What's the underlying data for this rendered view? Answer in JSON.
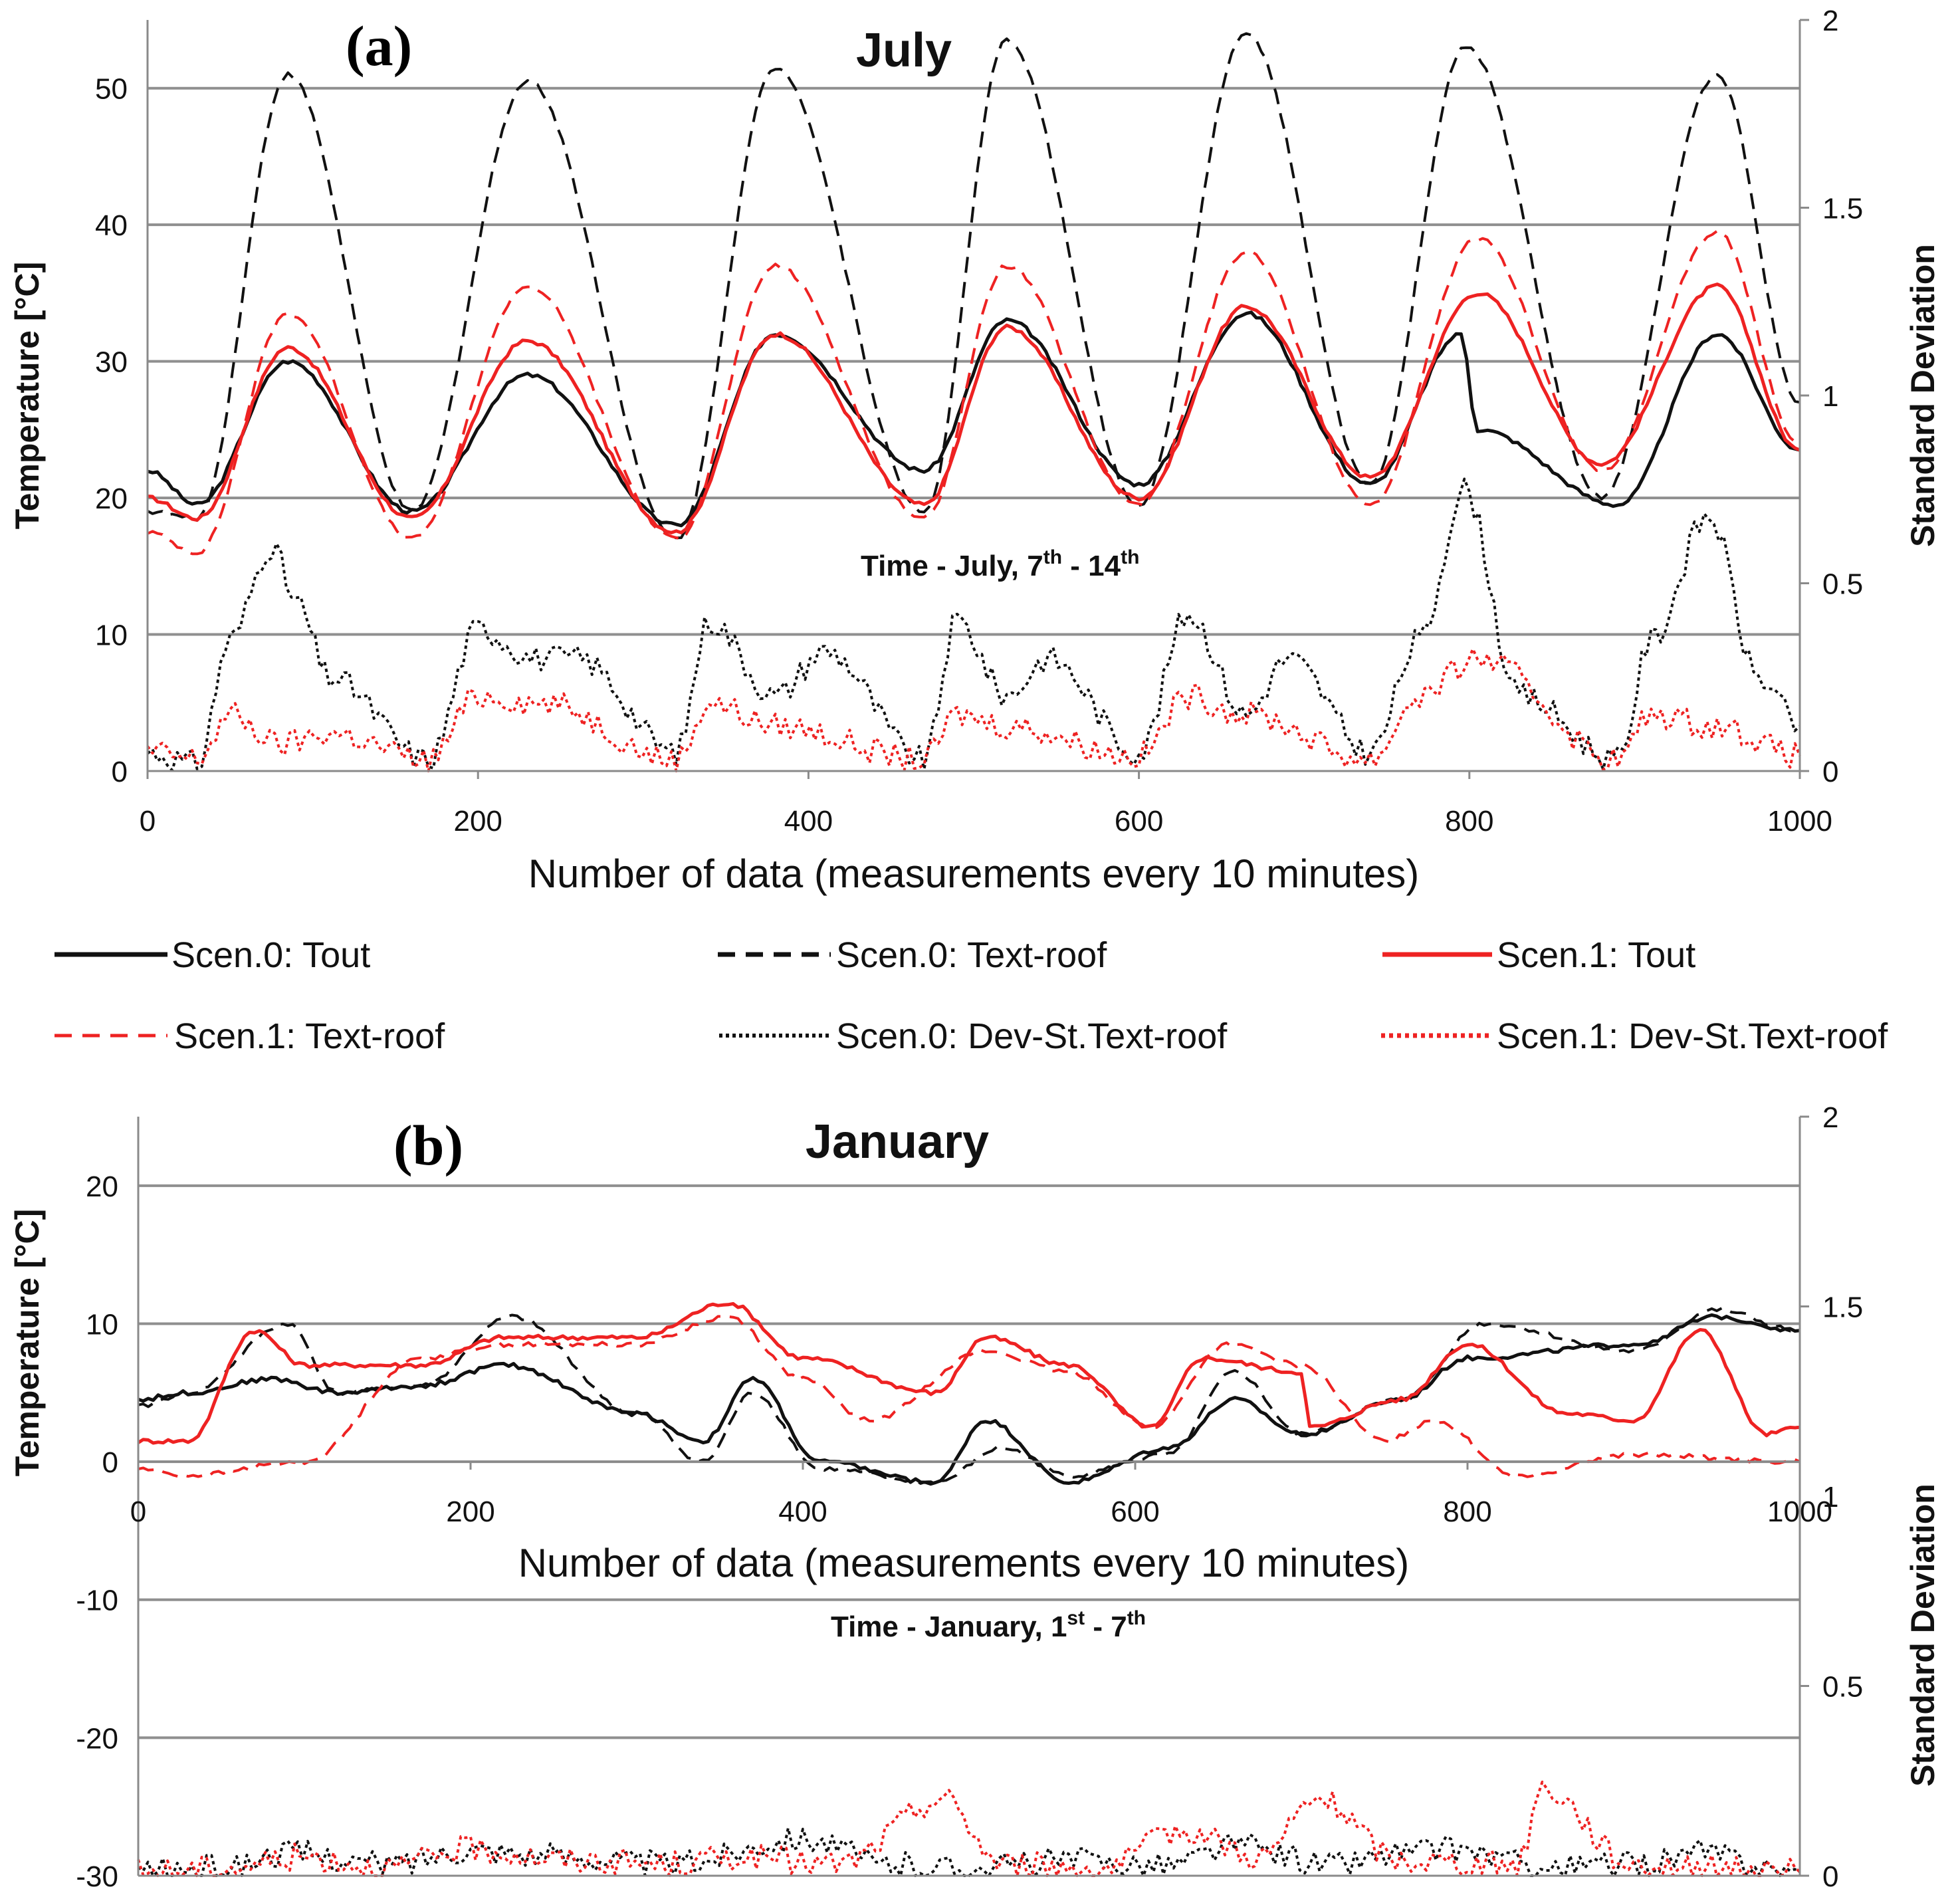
{
  "chart_data": [
    {
      "type": "line",
      "panel_label": "(a)",
      "title": "July",
      "ylabel": "Temperature  [°C]",
      "y2label": "Standard Deviation",
      "xlabel": "Number of data (measurements every 10 minutes)",
      "time_caption": {
        "prefix": "Time - July, 7",
        "sup1": "th",
        "mid": " - 14",
        "sup2": "th"
      },
      "xlim": [
        0,
        1000
      ],
      "ylim": [
        0,
        55
      ],
      "y2lim": [
        0,
        2
      ],
      "xticks": [
        "0",
        "200",
        "400",
        "600",
        "800",
        "1000"
      ],
      "yticks": [
        "0",
        "10",
        "20",
        "30",
        "40",
        "50"
      ],
      "y2ticks": [
        "0",
        "0.5",
        "1",
        "1.5",
        "2"
      ],
      "series": [
        {
          "name": "Scen.0: Tout",
          "color": "#111111",
          "style": "solid",
          "axis": "left",
          "x": [
            0,
            30,
            85,
            160,
            230,
            320,
            380,
            470,
            520,
            600,
            665,
            740,
            795,
            805,
            890,
            950,
            1000
          ],
          "y": [
            22,
            19.5,
            30,
            19,
            29,
            18,
            32,
            22,
            33,
            21,
            33.5,
            21,
            32,
            25,
            19.5,
            32,
            23.5
          ]
        },
        {
          "name": "Scen.0: Text-roof",
          "color": "#111111",
          "style": "dashed",
          "axis": "left",
          "x": [
            0,
            30,
            85,
            160,
            230,
            320,
            380,
            470,
            520,
            600,
            665,
            740,
            798,
            880,
            950,
            1000
          ],
          "y": [
            19,
            18.5,
            51,
            19,
            50.5,
            17,
            51.5,
            19,
            53.5,
            19.5,
            54,
            21,
            53,
            20,
            51,
            27
          ]
        },
        {
          "name": "Scen.1: Tout",
          "color": "#ee2222",
          "style": "solid",
          "axis": "left",
          "x": [
            0,
            30,
            85,
            160,
            230,
            320,
            380,
            470,
            520,
            600,
            665,
            740,
            805,
            880,
            950,
            1000
          ],
          "y": [
            20,
            18.5,
            31,
            18.5,
            31.5,
            17.5,
            32,
            19.5,
            32.5,
            20,
            34,
            21.5,
            35,
            22.5,
            35.5,
            23.5
          ]
        },
        {
          "name": "Scen.1: Text-roof",
          "color": "#ee2222",
          "style": "dashed",
          "axis": "left",
          "x": [
            0,
            30,
            85,
            160,
            230,
            320,
            380,
            470,
            520,
            600,
            665,
            740,
            805,
            880,
            950,
            1000
          ],
          "y": [
            17.5,
            16,
            33.5,
            17,
            35.5,
            17,
            37,
            18.5,
            37,
            19.5,
            38,
            19.5,
            39,
            22,
            39.5,
            24
          ]
        },
        {
          "name": "Scen.0: Dev-St.Text-roof",
          "color": "#111111",
          "style": "dotted",
          "axis": "right",
          "x": [
            0,
            30,
            50,
            75,
            90,
            110,
            170,
            200,
            235,
            260,
            320,
            340,
            380,
            410,
            470,
            490,
            520,
            545,
            600,
            630,
            665,
            690,
            740,
            770,
            797,
            830,
            890,
            910,
            945,
            975,
            1000
          ],
          "y": [
            0.05,
            0.02,
            0.35,
            0.6,
            0.45,
            0.25,
            0.03,
            0.38,
            0.3,
            0.3,
            0.05,
            0.4,
            0.2,
            0.32,
            0.03,
            0.4,
            0.2,
            0.3,
            0.05,
            0.42,
            0.15,
            0.3,
            0.05,
            0.35,
            0.75,
            0.2,
            0.03,
            0.35,
            0.68,
            0.25,
            0.12
          ]
        },
        {
          "name": "Scen.1: Dev-St.Text-roof",
          "color": "#ee2222",
          "style": "dotted",
          "axis": "right",
          "x": [
            0,
            30,
            50,
            80,
            110,
            170,
            200,
            240,
            320,
            340,
            380,
            470,
            490,
            520,
            600,
            630,
            665,
            740,
            770,
            805,
            890,
            910,
            950,
            1000
          ],
          "y": [
            0.05,
            0.03,
            0.15,
            0.07,
            0.1,
            0.03,
            0.2,
            0.18,
            0.03,
            0.18,
            0.12,
            0.03,
            0.15,
            0.12,
            0.04,
            0.2,
            0.15,
            0.03,
            0.2,
            0.3,
            0.03,
            0.15,
            0.12,
            0.04
          ]
        }
      ]
    },
    {
      "type": "line",
      "panel_label": "(b)",
      "title": "January",
      "ylabel": "Temperature  [°C]",
      "y2label": "Standard Deviation",
      "xlabel": "Number of data (measurements every 10 minutes)",
      "time_caption": {
        "prefix": "Time - January, 1",
        "sup1": "st",
        "mid": " - 7",
        "sup2": "th"
      },
      "xlim": [
        0,
        1000
      ],
      "ylim": [
        -30,
        25
      ],
      "y2lim": [
        0,
        2
      ],
      "xticks": [
        "0",
        "200",
        "400",
        "600",
        "800",
        "1000"
      ],
      "yticks": [
        "-30",
        "-20",
        "-10",
        "0",
        "10",
        "20"
      ],
      "y2ticks": [
        "0",
        "0.5",
        "1",
        "1.5",
        "2"
      ],
      "y2ticks_shown": [
        "0",
        "0.5",
        "1.5",
        "2"
      ],
      "y2tick_extra": "1",
      "series": [
        {
          "name": "Scen.0: Tout",
          "color": "#111111",
          "style": "solid",
          "axis": "left",
          "x": [
            0,
            30,
            80,
            120,
            170,
            220,
            300,
            340,
            370,
            410,
            480,
            510,
            560,
            620,
            660,
            700,
            760,
            800,
            900,
            950,
            1000
          ],
          "y": [
            4.5,
            5,
            6,
            5,
            5.5,
            7,
            3.5,
            1.5,
            6,
            0,
            -1.5,
            3,
            -1.5,
            1,
            4.5,
            2,
            4.5,
            7.5,
            8.5,
            10.5,
            9.5
          ]
        },
        {
          "name": "Scen.0: Text-roof",
          "color": "#111111",
          "style": "dashed",
          "axis": "left",
          "x": [
            0,
            30,
            90,
            120,
            170,
            225,
            300,
            340,
            370,
            410,
            480,
            520,
            560,
            620,
            660,
            700,
            760,
            810,
            900,
            950,
            1000
          ],
          "y": [
            4,
            5,
            10,
            5,
            5.5,
            10.5,
            3.5,
            0,
            5,
            -0.5,
            -1.5,
            1,
            -1,
            0.5,
            6.5,
            2,
            4.5,
            10,
            8,
            11,
            9.5
          ]
        },
        {
          "name": "Scen.1: Tout",
          "color": "#ee2222",
          "style": "solid",
          "axis": "left",
          "x": [
            0,
            30,
            70,
            100,
            170,
            220,
            300,
            355,
            400,
            480,
            510,
            560,
            610,
            640,
            700,
            705,
            760,
            800,
            860,
            900,
            940,
            980,
            1000
          ],
          "y": [
            1.5,
            1.5,
            9.5,
            7,
            7,
            9,
            9,
            11.5,
            7.5,
            5,
            9,
            7,
            2.5,
            7.5,
            6.5,
            2.5,
            4.5,
            8.5,
            3.5,
            3,
            9.5,
            2,
            2.5
          ]
        },
        {
          "name": "Scen.1: Text-roof",
          "color": "#ee2222",
          "style": "dashed",
          "axis": "left",
          "x": [
            0,
            30,
            100,
            170,
            220,
            300,
            355,
            400,
            440,
            510,
            560,
            610,
            655,
            700,
            750,
            780,
            830,
            900,
            1000
          ],
          "y": [
            -0.5,
            -1,
            0,
            7.5,
            8.5,
            8.5,
            10.5,
            6,
            3,
            8,
            6.5,
            2.5,
            8.5,
            7,
            1.5,
            3,
            -1,
            0.5,
            0
          ]
        },
        {
          "name": "Scen.0: Dev-St.Text-roof",
          "color": "#111111",
          "style": "dotted",
          "axis": "right",
          "x": [
            0,
            50,
            90,
            150,
            200,
            260,
            320,
            400,
            450,
            500,
            560,
            620,
            660,
            720,
            760,
            790,
            850,
            900,
            940,
            1000
          ],
          "y": [
            0.01,
            0.02,
            0.06,
            0.03,
            0.07,
            0.05,
            0.03,
            0.1,
            0.03,
            0.02,
            0.04,
            0.03,
            0.08,
            0.03,
            0.06,
            0.07,
            0.02,
            0.03,
            0.06,
            0.01
          ]
        },
        {
          "name": "Scen.1: Dev-St.Text-roof",
          "color": "#ee2222",
          "style": "dotted",
          "axis": "right",
          "x": [
            0,
            50,
            100,
            150,
            200,
            260,
            320,
            360,
            420,
            485,
            520,
            580,
            630,
            675,
            710,
            760,
            830,
            845,
            900,
            950,
            1000
          ],
          "y": [
            0.01,
            0.02,
            0.05,
            0.02,
            0.07,
            0.04,
            0.03,
            0.05,
            0.03,
            0.2,
            0.03,
            0.02,
            0.12,
            0.05,
            0.2,
            0.04,
            0.03,
            0.23,
            0.03,
            0.02,
            0.01
          ]
        }
      ]
    }
  ],
  "legend": {
    "items": [
      {
        "label": "Scen.0: Tout",
        "color": "#111111",
        "style": "solid"
      },
      {
        "label": "Scen.0: Text-roof",
        "color": "#111111",
        "style": "dashed"
      },
      {
        "label": "Scen.1: Tout",
        "color": "#ee2222",
        "style": "solid"
      },
      {
        "label": "Scen.1: Text-roof",
        "color": "#ee2222",
        "style": "dashed"
      },
      {
        "label": "Scen.0: Dev-St.Text-roof",
        "color": "#111111",
        "style": "dotted"
      },
      {
        "label": "Scen.1: Dev-St.Text-roof",
        "color": "#ee2222",
        "style": "dotted"
      }
    ]
  }
}
